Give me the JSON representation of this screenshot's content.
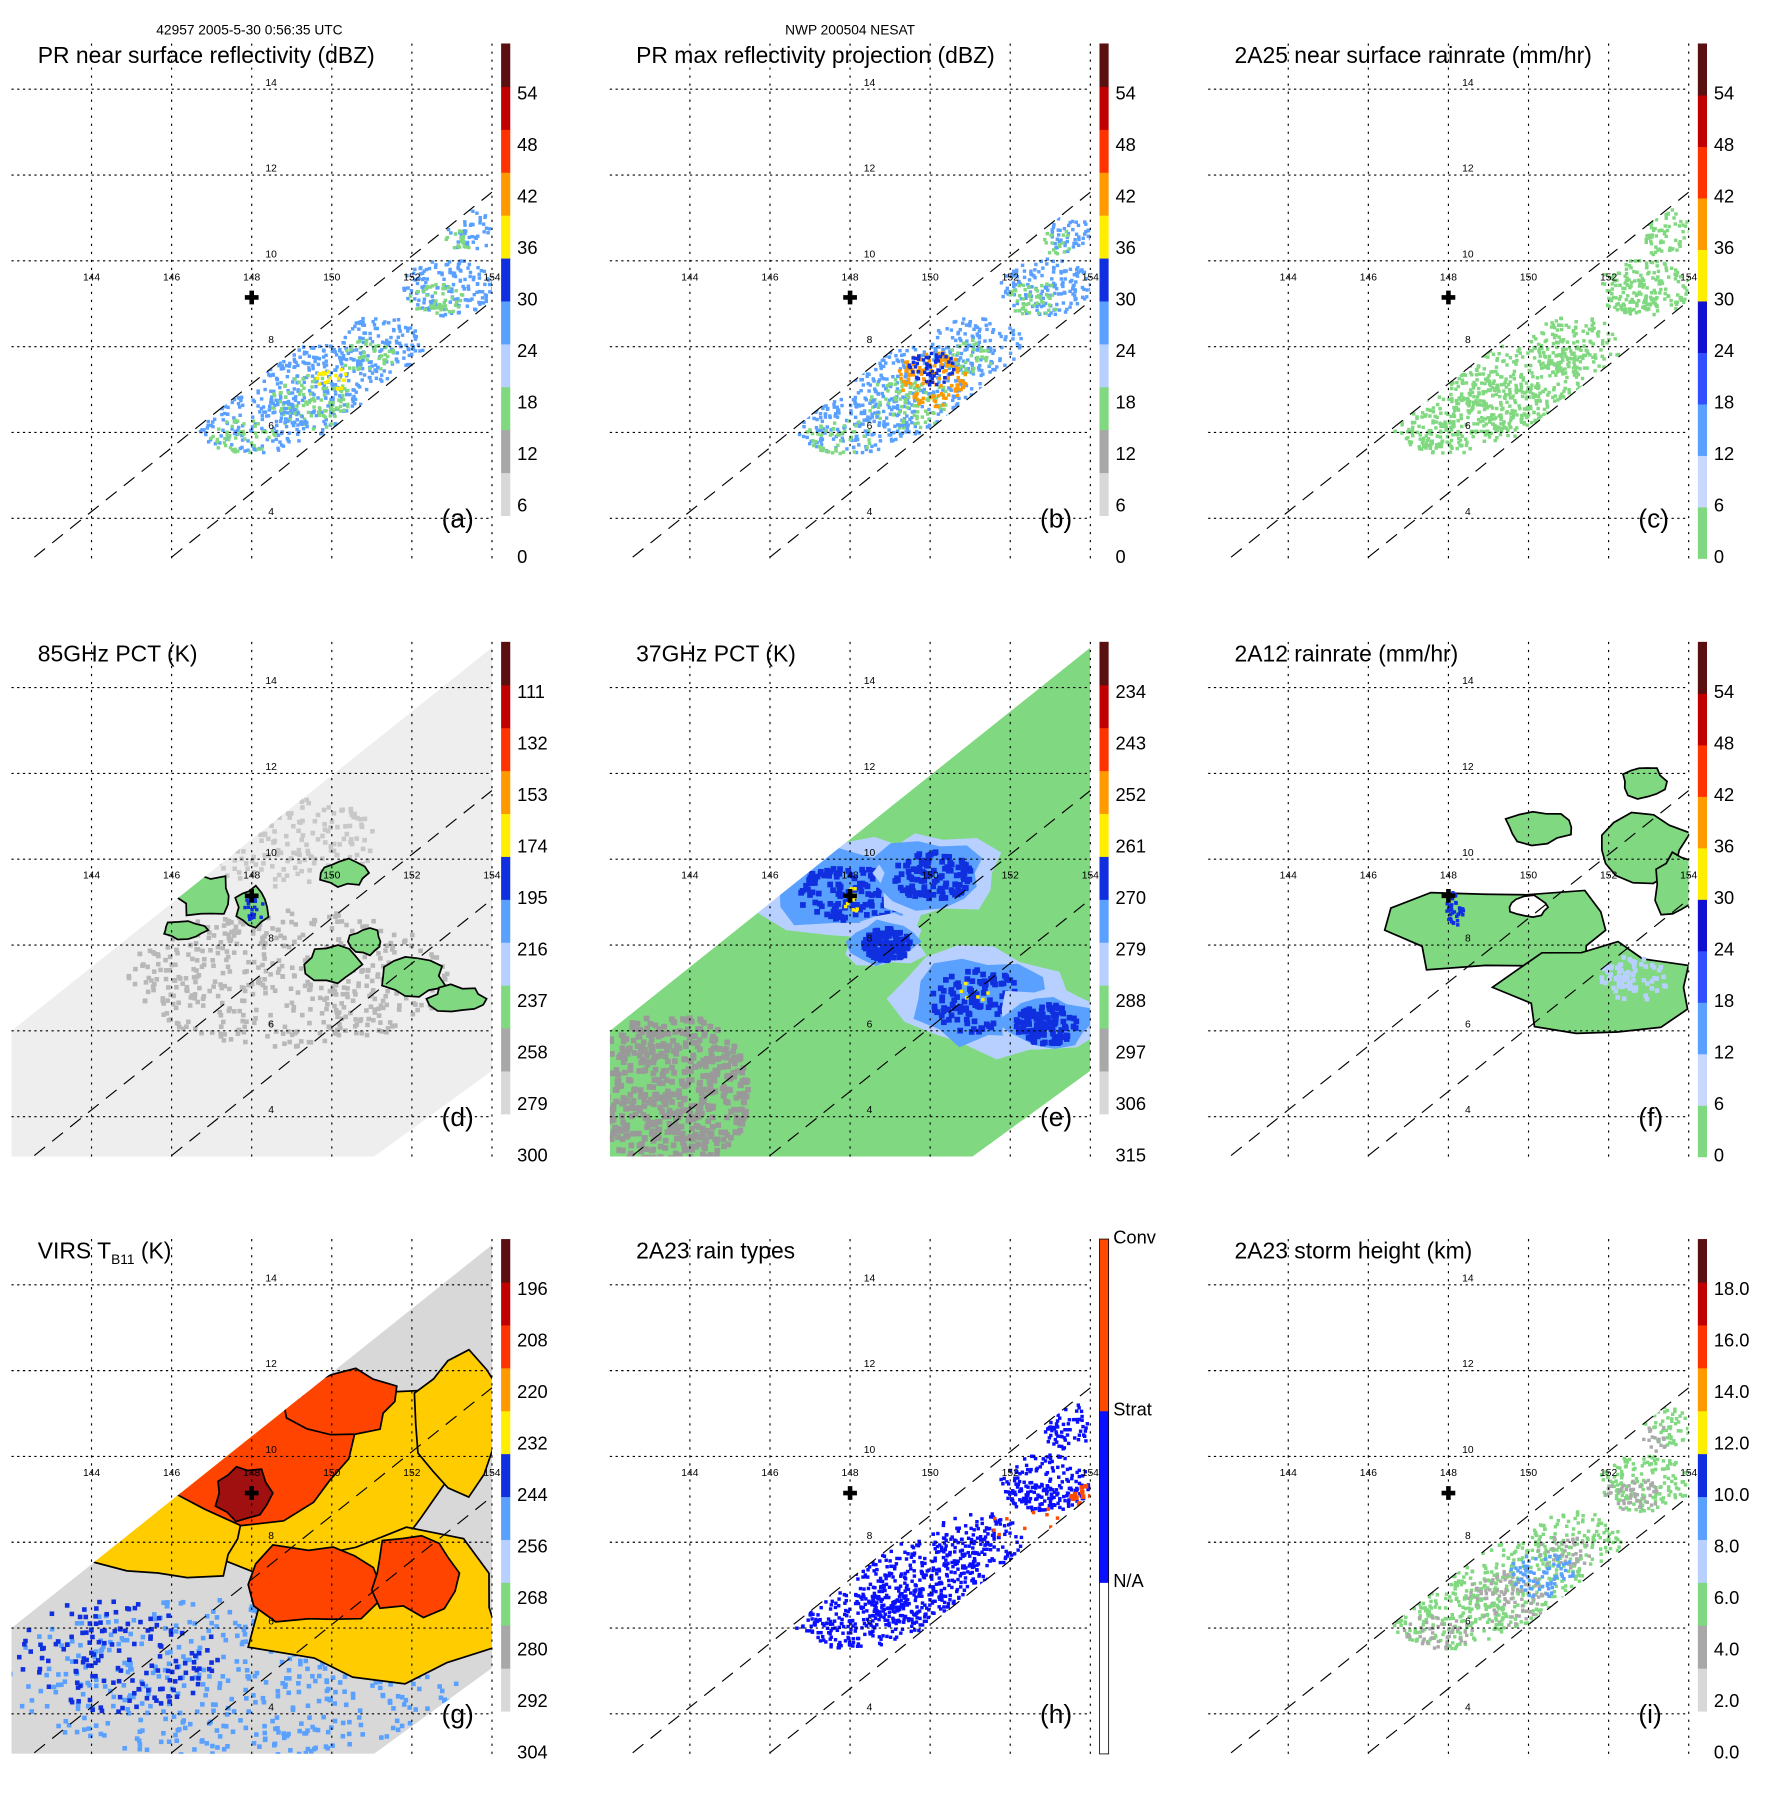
{
  "header": {
    "left": "42957 2005-5-30 0:56:35 UTC",
    "center": "NWP 200504 NESAT"
  },
  "grid": {
    "lon_labels": [
      "144",
      "146",
      "148",
      "150",
      "152",
      "154"
    ],
    "lat_labels": [
      "4",
      "6",
      "8",
      "10",
      "12",
      "14"
    ]
  },
  "panels": [
    {
      "title": "PR near surface reflectivity (dBZ)",
      "letter": "(a)",
      "ticks": [
        "0",
        "6",
        "12",
        "18",
        "24",
        "30",
        "36",
        "42",
        "48",
        "54"
      ],
      "cb_colors": [
        "#ffffff",
        "#d8d8d8",
        "#a8a8a8",
        "#80d880",
        "#b8d0ff",
        "#5aa0ff",
        "#1030e0",
        "#ffee00",
        "#ff9900",
        "#ff3300",
        "#c00000",
        "#5a1010"
      ]
    },
    {
      "title": "PR max reflectivity projection (dBZ)",
      "letter": "(b)",
      "ticks": [
        "0",
        "6",
        "12",
        "18",
        "24",
        "30",
        "36",
        "42",
        "48",
        "54"
      ],
      "cb_colors": [
        "#ffffff",
        "#d8d8d8",
        "#a8a8a8",
        "#80d880",
        "#b8d0ff",
        "#5aa0ff",
        "#1030e0",
        "#ffee00",
        "#ff9900",
        "#ff3300",
        "#c00000",
        "#5a1010"
      ]
    },
    {
      "title": "2A25 near surface rainrate (mm/hr)",
      "letter": "(c)",
      "ticks": [
        "0",
        "6",
        "12",
        "18",
        "24",
        "30",
        "36",
        "42",
        "48",
        "54"
      ],
      "cb_colors": [
        "#80d880",
        "#c8d8ff",
        "#5aa0ff",
        "#3050ff",
        "#1010d0",
        "#ffee00",
        "#ff9900",
        "#ff3300",
        "#c00000",
        "#5a1010"
      ]
    },
    {
      "title": "85GHz PCT (K)",
      "letter": "(d)",
      "ticks": [
        "300",
        "279",
        "258",
        "237",
        "216",
        "195",
        "174",
        "153",
        "132",
        "111"
      ],
      "cb_colors": [
        "#ffffff",
        "#d8d8d8",
        "#a8a8a8",
        "#80d880",
        "#b8d0ff",
        "#5aa0ff",
        "#1030e0",
        "#ffee00",
        "#ff9900",
        "#ff3300",
        "#c00000",
        "#5a1010"
      ]
    },
    {
      "title": "37GHz PCT (K)",
      "letter": "(e)",
      "ticks": [
        "315",
        "306",
        "297",
        "288",
        "279",
        "270",
        "261",
        "252",
        "243",
        "234"
      ],
      "cb_colors": [
        "#ffffff",
        "#d8d8d8",
        "#a8a8a8",
        "#80d880",
        "#b8d0ff",
        "#5aa0ff",
        "#1030e0",
        "#ffee00",
        "#ff9900",
        "#ff3300",
        "#c00000",
        "#5a1010"
      ]
    },
    {
      "title": "2A12 rainrate (mm/hr)",
      "letter": "(f)",
      "ticks": [
        "0",
        "6",
        "12",
        "18",
        "24",
        "30",
        "36",
        "42",
        "48",
        "54"
      ],
      "cb_colors": [
        "#80d880",
        "#c8d8ff",
        "#5aa0ff",
        "#3050ff",
        "#1010d0",
        "#ffee00",
        "#ff9900",
        "#ff3300",
        "#c00000",
        "#5a1010"
      ]
    },
    {
      "title_main": "VIRS T",
      "title_sub": "B11",
      "title_tail": " (K)",
      "letter": "(g)",
      "ticks": [
        "304",
        "292",
        "280",
        "268",
        "256",
        "244",
        "232",
        "220",
        "208",
        "196"
      ],
      "cb_colors": [
        "#ffffff",
        "#d8d8d8",
        "#a8a8a8",
        "#80d880",
        "#b8d0ff",
        "#5aa0ff",
        "#1030e0",
        "#ffee00",
        "#ff9900",
        "#ff3300",
        "#c00000",
        "#5a1010"
      ]
    },
    {
      "title": "2A23 rain types",
      "letter": "(h)",
      "categories": [
        "Conv",
        "Strat",
        "N/A"
      ],
      "cb_colors": [
        "#ffffff",
        "#0a10ff",
        "#ff4a00"
      ]
    },
    {
      "title": "2A23 storm height (km)",
      "letter": "(i)",
      "ticks": [
        "0.0",
        "2.0",
        "4.0",
        "6.0",
        "8.0",
        "10.0",
        "12.0",
        "14.0",
        "16.0",
        "18.0"
      ],
      "cb_colors": [
        "#ffffff",
        "#d8d8d8",
        "#a8a8a8",
        "#80d880",
        "#b8d0ff",
        "#5aa0ff",
        "#1030e0",
        "#ffee00",
        "#ff9900",
        "#ff3300",
        "#c00000",
        "#5a1010"
      ]
    }
  ]
}
